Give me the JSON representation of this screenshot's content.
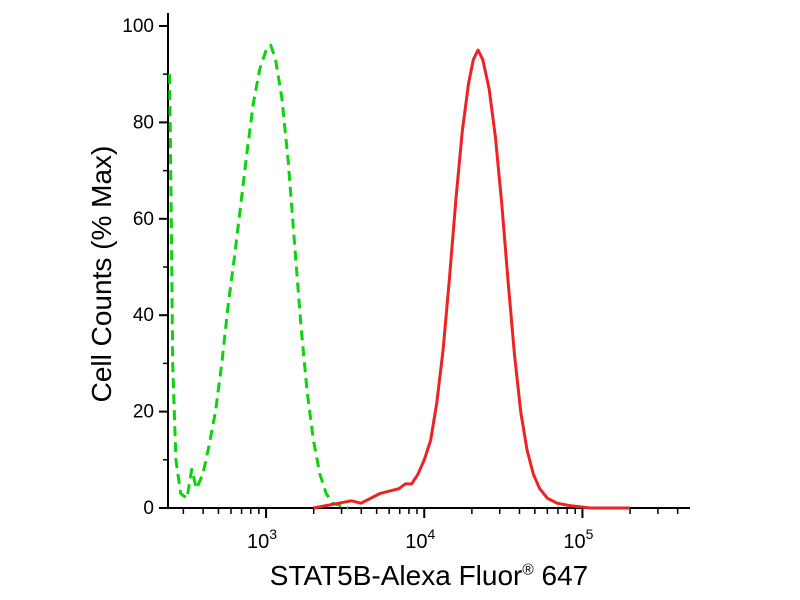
{
  "chart_data": {
    "type": "line",
    "title": "",
    "ylabel": "Cell Counts (% Max)",
    "xlabel_parts": {
      "main": "STAT5B-Alexa Fluor",
      "sup": "®",
      "tail": " 647"
    },
    "x_scale": "log10",
    "x_range_log10": [
      2.38,
      5.68
    ],
    "ylim": [
      0,
      100
    ],
    "y_major_ticks": [
      0,
      20,
      40,
      60,
      80,
      100
    ],
    "y_minor_step": 10,
    "x_major_tick_exponents": [
      3,
      4,
      5
    ],
    "x_minor_decades": [
      2,
      3,
      4,
      5
    ],
    "axis_color": "#000000",
    "background_color": "#ffffff",
    "legend": "none",
    "grid": false,
    "series": [
      {
        "name": "control-green-dashed",
        "color": "#0cd30c",
        "dash": true,
        "points_log10x_y": [
          [
            2.39,
            90
          ],
          [
            2.4,
            62
          ],
          [
            2.41,
            30
          ],
          [
            2.43,
            10
          ],
          [
            2.46,
            3
          ],
          [
            2.5,
            2
          ],
          [
            2.53,
            8
          ],
          [
            2.56,
            4
          ],
          [
            2.6,
            7
          ],
          [
            2.64,
            13
          ],
          [
            2.68,
            20
          ],
          [
            2.72,
            30
          ],
          [
            2.76,
            42
          ],
          [
            2.8,
            52
          ],
          [
            2.84,
            63
          ],
          [
            2.88,
            74
          ],
          [
            2.92,
            84
          ],
          [
            2.96,
            91
          ],
          [
            3.0,
            95
          ],
          [
            3.03,
            96
          ],
          [
            3.06,
            93
          ],
          [
            3.1,
            85
          ],
          [
            3.14,
            72
          ],
          [
            3.18,
            55
          ],
          [
            3.22,
            38
          ],
          [
            3.26,
            24
          ],
          [
            3.3,
            14
          ],
          [
            3.34,
            7
          ],
          [
            3.38,
            3
          ],
          [
            3.42,
            1
          ],
          [
            3.47,
            0.5
          ],
          [
            3.52,
            0
          ]
        ]
      },
      {
        "name": "stat5b-red-solid",
        "color": "#ee2222",
        "dash": false,
        "points_log10x_y": [
          [
            3.3,
            0
          ],
          [
            3.38,
            0.5
          ],
          [
            3.46,
            1
          ],
          [
            3.54,
            1.5
          ],
          [
            3.6,
            1
          ],
          [
            3.66,
            2
          ],
          [
            3.72,
            3
          ],
          [
            3.78,
            3.5
          ],
          [
            3.84,
            4
          ],
          [
            3.88,
            5
          ],
          [
            3.92,
            5
          ],
          [
            3.96,
            7
          ],
          [
            4.0,
            10
          ],
          [
            4.04,
            14
          ],
          [
            4.08,
            22
          ],
          [
            4.12,
            33
          ],
          [
            4.16,
            48
          ],
          [
            4.2,
            64
          ],
          [
            4.24,
            78
          ],
          [
            4.28,
            88
          ],
          [
            4.31,
            93
          ],
          [
            4.34,
            95
          ],
          [
            4.37,
            93
          ],
          [
            4.41,
            87
          ],
          [
            4.45,
            77
          ],
          [
            4.49,
            63
          ],
          [
            4.53,
            47
          ],
          [
            4.57,
            32
          ],
          [
            4.61,
            20
          ],
          [
            4.65,
            12
          ],
          [
            4.69,
            7
          ],
          [
            4.73,
            4
          ],
          [
            4.78,
            2
          ],
          [
            4.84,
            1
          ],
          [
            4.92,
            0.5
          ],
          [
            5.05,
            0
          ],
          [
            5.3,
            0
          ]
        ]
      }
    ]
  }
}
